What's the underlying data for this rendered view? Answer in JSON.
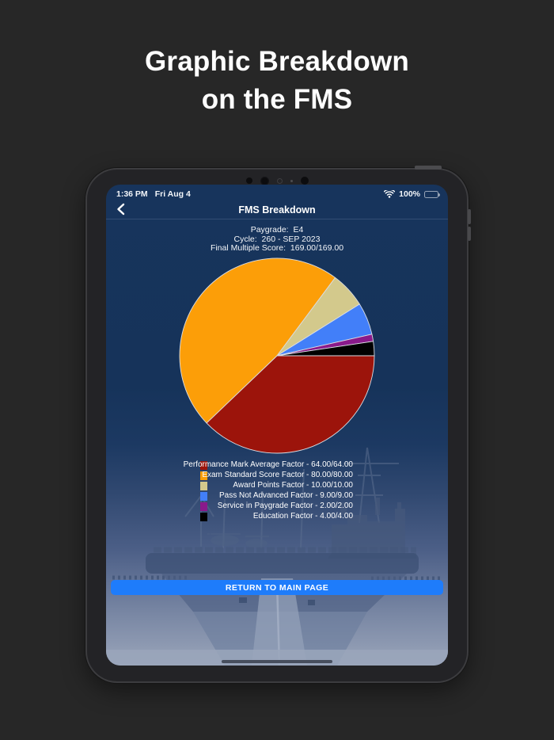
{
  "page": {
    "title_line1": "Graphic Breakdown",
    "title_line2": "on the FMS",
    "background": "#272727"
  },
  "status_bar": {
    "time": "1:36 PM",
    "date": "Fri Aug 4",
    "battery": "100%",
    "wifi_icon": "wifi-icon",
    "battery_icon": "battery-icon"
  },
  "nav_bar": {
    "title": "FMS Breakdown",
    "back_icon": "chevron-left-icon"
  },
  "summary": {
    "paygrade_label": "Paygrade:",
    "paygrade_value": "E4",
    "cycle_label": "Cycle:",
    "cycle_value": "260 - SEP 2023",
    "fms_label": "Final Multiple Score:",
    "fms_value": "169.00/169.00"
  },
  "chart_data": {
    "type": "pie",
    "title": "",
    "total": 169,
    "start_angle_deg": 0,
    "direction": "clockwise",
    "legend_position": "below-right-aligned",
    "series": [
      {
        "name": "Performance Mark Average Factor",
        "value": 64,
        "max": 64,
        "color": "#9C140B",
        "label": "Performance Mark Average Factor - 64.00/64.00"
      },
      {
        "name": "Exam Standard Score Factor",
        "value": 80,
        "max": 80,
        "color": "#FC9E08",
        "label": "Exam Standard Score Factor - 80.00/80.00"
      },
      {
        "name": "Award Points Factor",
        "value": 10,
        "max": 10,
        "color": "#D3C98C",
        "label": "Award Points Factor - 10.00/10.00"
      },
      {
        "name": "Pass Not Advanced Factor",
        "value": 9,
        "max": 9,
        "color": "#427FF9",
        "label": "Pass Not Advanced Factor - 9.00/9.00"
      },
      {
        "name": "Service in Paygrade Factor",
        "value": 2,
        "max": 2,
        "color": "#8A1A8B",
        "label": "Service in Paygrade Factor - 2.00/2.00"
      },
      {
        "name": "Education Factor",
        "value": 4,
        "max": 4,
        "color": "#010101",
        "label": "Education Factor - 4.00/4.00"
      }
    ],
    "slice_stroke": "#d9dde3"
  },
  "button": {
    "label": "RETURN TO MAIN PAGE",
    "color": "#1e7cfb"
  },
  "colors": {
    "screen_navy": "#16335A",
    "accent_blue": "#1e7cfb"
  }
}
